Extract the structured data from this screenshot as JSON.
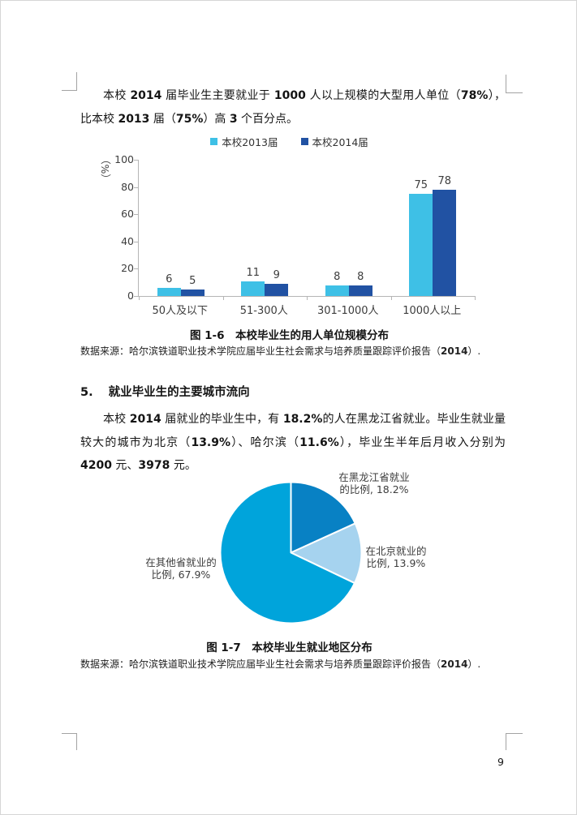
{
  "page": {
    "number": "9"
  },
  "paragraph1": {
    "segments": [
      {
        "t": "本校 ",
        "b": 0
      },
      {
        "t": "2014",
        "b": 1
      },
      {
        "t": " 届毕业生主要就业于 ",
        "b": 0
      },
      {
        "t": "1000",
        "b": 1
      },
      {
        "t": " 人以上规模的大型用人单位（",
        "b": 0
      },
      {
        "t": "78%",
        "b": 1
      },
      {
        "t": "），比本校 ",
        "b": 0
      },
      {
        "t": "2013",
        "b": 1
      },
      {
        "t": " 届（",
        "b": 0
      },
      {
        "t": "75%",
        "b": 1
      },
      {
        "t": "）高 ",
        "b": 0
      },
      {
        "t": "3",
        "b": 1
      },
      {
        "t": " 个百分点。",
        "b": 0
      }
    ]
  },
  "figure6": {
    "caption": "图 1-6　本校毕业生的用人单位规模分布",
    "source_segments": [
      {
        "t": "数据来源：哈尔滨铁道职业技术学院应届毕业生社会需求与培养质量跟踪评价报告（",
        "b": 0
      },
      {
        "t": "2014",
        "b": 1
      },
      {
        "t": "）.",
        "b": 0
      }
    ]
  },
  "section5": {
    "number": "5.",
    "title": "就业毕业生的主要城市流向"
  },
  "paragraph2": {
    "segments": [
      {
        "t": "本校 ",
        "b": 0
      },
      {
        "t": "2014",
        "b": 1
      },
      {
        "t": " 届就业的毕业生中，有 ",
        "b": 0
      },
      {
        "t": "18.2%",
        "b": 1
      },
      {
        "t": "的人在黑龙江省就业。毕业生就业量较大的城市为北京（",
        "b": 0
      },
      {
        "t": "13.9%",
        "b": 1
      },
      {
        "t": "）、哈尔滨（",
        "b": 0
      },
      {
        "t": "11.6%",
        "b": 1
      },
      {
        "t": "），毕业生半年后月收入分别为 ",
        "b": 0
      },
      {
        "t": "4200",
        "b": 1
      },
      {
        "t": " 元、",
        "b": 0
      },
      {
        "t": "3978",
        "b": 1
      },
      {
        "t": " 元。",
        "b": 0
      }
    ]
  },
  "figure7": {
    "caption": "图 1-7　本校毕业生就业地区分布",
    "source_segments": [
      {
        "t": "数据来源：哈尔滨铁道职业技术学院应届毕业生社会需求与培养质量跟踪评价报告（",
        "b": 0
      },
      {
        "t": "2014",
        "b": 1
      },
      {
        "t": "）.",
        "b": 0
      }
    ]
  },
  "chart_data": [
    {
      "type": "bar",
      "title": "图 1-6　本校毕业生的用人单位规模分布",
      "categories": [
        "50人及以下",
        "51-300人",
        "301-1000人",
        "1000人以上"
      ],
      "series": [
        {
          "name": "本校2013届",
          "color": "#3EC0E6",
          "values": [
            6,
            11,
            8,
            75
          ]
        },
        {
          "name": "本校2014届",
          "color": "#2152A3",
          "values": [
            5,
            9,
            8,
            78
          ]
        }
      ],
      "xlabel": "",
      "ylabel": "（%）",
      "ylim": [
        0,
        100
      ],
      "yticks": [
        0,
        20,
        40,
        60,
        80,
        100
      ],
      "grid": false,
      "value_labels": true,
      "legend_position": "top",
      "axis_color": "#b5b5b5"
    },
    {
      "type": "pie",
      "title": "图 1-7　本校毕业生就业地区分布",
      "start_angle_deg": 0,
      "direction": "clockwise",
      "slices": [
        {
          "name": "在黑龙江省就业的比例",
          "value": 18.2,
          "color": "#0881C4",
          "label_lines": [
            "在黑龙江省就业",
            "的比例, 18.2%"
          ]
        },
        {
          "name": "在北京就业的比例",
          "value": 13.9,
          "color": "#A6D3EF",
          "label_lines": [
            "在北京就业的",
            "比例, 13.9%"
          ]
        },
        {
          "name": "在其他省就业的比例",
          "value": 67.9,
          "color": "#00A4DB",
          "label_lines": [
            "在其他省就业的",
            "比例, 67.9%"
          ]
        }
      ]
    }
  ]
}
